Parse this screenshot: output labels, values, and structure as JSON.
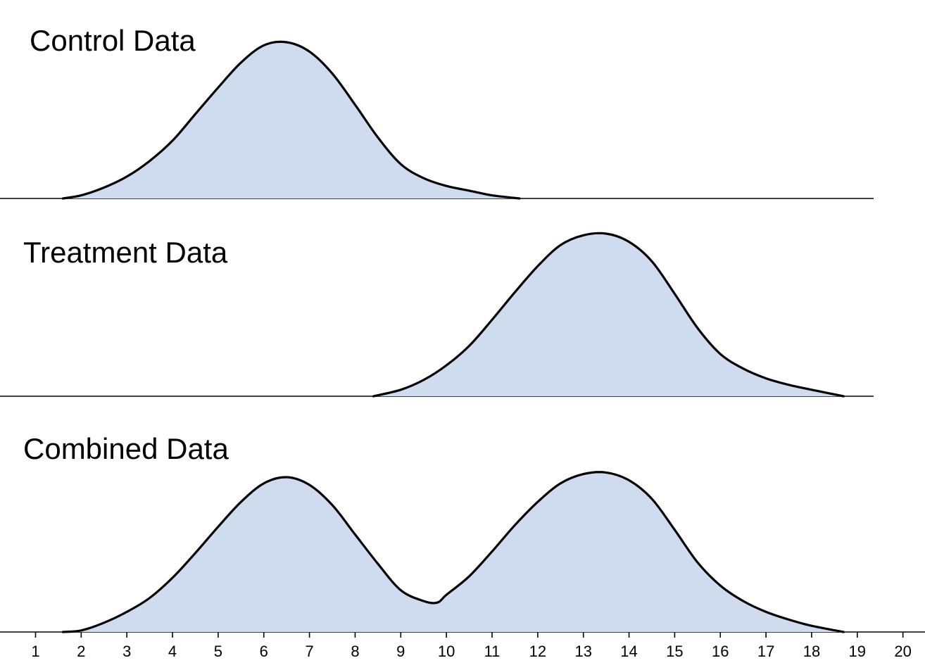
{
  "chart_data": [
    {
      "type": "area",
      "title": "Control Data",
      "fill_color": "#cfdcf0",
      "line_color": "#000000",
      "x": [
        1.6,
        2,
        2.5,
        3,
        3.5,
        4,
        4.5,
        5,
        5.5,
        6,
        6.5,
        7,
        7.5,
        8,
        8.5,
        9,
        9.5,
        10,
        10.5,
        11,
        11.6
      ],
      "y": [
        0.0,
        0.02,
        0.07,
        0.14,
        0.24,
        0.37,
        0.54,
        0.71,
        0.87,
        0.98,
        1.0,
        0.94,
        0.8,
        0.6,
        0.39,
        0.22,
        0.13,
        0.08,
        0.05,
        0.02,
        0.0
      ]
    },
    {
      "type": "area",
      "title": "Treatment Data",
      "fill_color": "#cfdcf0",
      "line_color": "#000000",
      "x": [
        8.4,
        9,
        9.5,
        10,
        10.5,
        11,
        11.5,
        12,
        12.5,
        13,
        13.5,
        14,
        14.5,
        15,
        15.5,
        16,
        16.5,
        17,
        17.5,
        18,
        18.7
      ],
      "y": [
        0.0,
        0.04,
        0.1,
        0.19,
        0.31,
        0.47,
        0.64,
        0.8,
        0.93,
        0.99,
        1.0,
        0.95,
        0.83,
        0.63,
        0.42,
        0.26,
        0.17,
        0.11,
        0.07,
        0.04,
        0.0
      ]
    },
    {
      "type": "area",
      "title": "Combined Data",
      "fill_color": "#cfdcf0",
      "line_color": "#000000",
      "x": [
        1.6,
        2,
        2.5,
        3,
        3.5,
        4,
        4.5,
        5,
        5.5,
        6,
        6.5,
        7,
        7.5,
        8,
        8.5,
        9,
        9.5,
        9.8,
        10,
        10.5,
        11,
        11.5,
        12,
        12.5,
        13,
        13.5,
        14,
        14.5,
        15,
        15.5,
        16,
        16.5,
        17,
        17.5,
        18,
        18.7
      ],
      "y": [
        0.0,
        0.01,
        0.06,
        0.13,
        0.22,
        0.35,
        0.51,
        0.68,
        0.84,
        0.96,
        1.0,
        0.95,
        0.82,
        0.63,
        0.44,
        0.27,
        0.2,
        0.19,
        0.24,
        0.36,
        0.52,
        0.69,
        0.84,
        0.96,
        1.02,
        1.03,
        0.98,
        0.86,
        0.66,
        0.45,
        0.3,
        0.2,
        0.13,
        0.08,
        0.04,
        0.0
      ]
    }
  ],
  "x_axis": {
    "xlim": [
      0.2,
      20.5
    ],
    "ticks": [
      1,
      2,
      3,
      4,
      5,
      6,
      7,
      8,
      9,
      10,
      11,
      12,
      13,
      14,
      15,
      16,
      17,
      18,
      19,
      20
    ]
  }
}
